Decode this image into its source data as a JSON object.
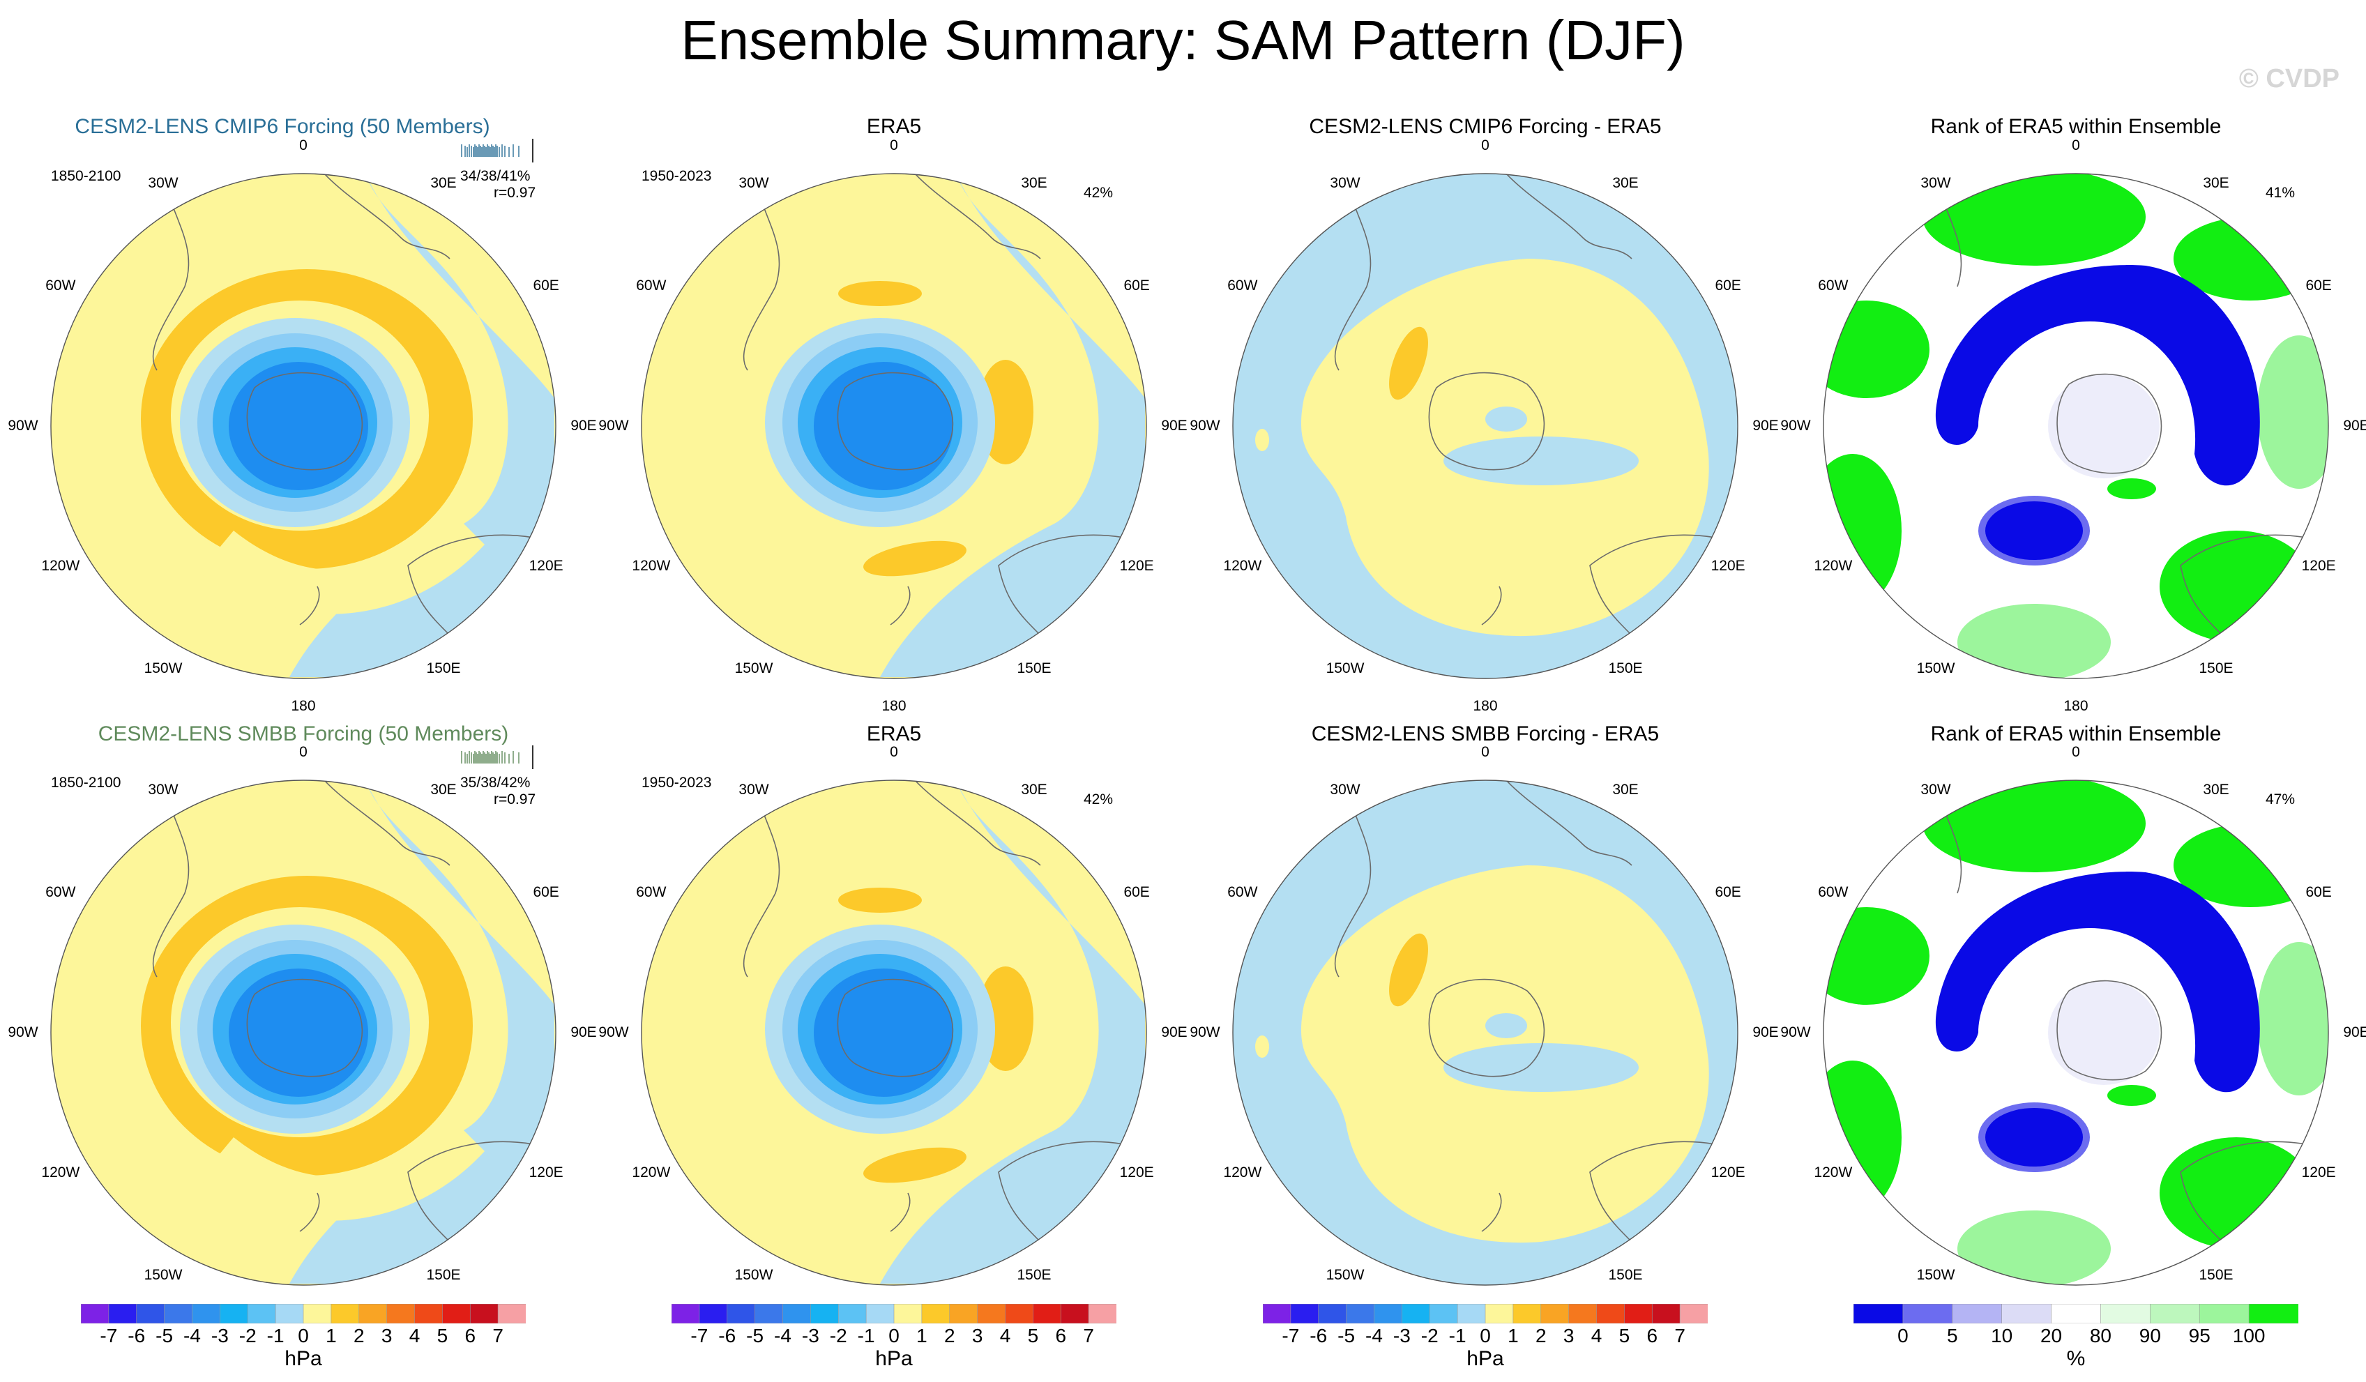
{
  "title": "Ensemble Summary: SAM Pattern (DJF)",
  "watermark": "© CVDP",
  "colors": {
    "bg_yellow": "#fdf69a",
    "pos1": "#fcc92a",
    "neg_light": "#b4dff2",
    "neg_mid": "#8ccdf5",
    "neg_deep": "#3ab0f5",
    "neg_core": "#1e8df0",
    "rank_blue": "#0a0ae6",
    "rank_lblue": "#6c6cf0",
    "rank_vlight": "#dcdcf6",
    "rank_green": "#12ee12",
    "rank_lgreen": "#9cf59c",
    "rank_vlgreen": "#e2fbe2"
  },
  "longitude_labels": [
    "0",
    "30E",
    "60E",
    "90E",
    "120E",
    "150E",
    "180",
    "150W",
    "120W",
    "90W",
    "60W",
    "30W"
  ],
  "rows": [
    {
      "panels": [
        {
          "title": "CESM2-LENS CMIP6 Forcing (50 Members)",
          "period": "1850-2100",
          "stats": "34/38/41%",
          "corr": "r=0.97",
          "pct": ""
        },
        {
          "title": "ERA5",
          "period": "1950-2023",
          "stats": "",
          "corr": "",
          "pct": "42%"
        },
        {
          "title": "CESM2-LENS CMIP6 Forcing - ERA5",
          "period": "",
          "stats": "",
          "corr": "",
          "pct": ""
        },
        {
          "title": "Rank of ERA5 within Ensemble",
          "period": "",
          "stats": "",
          "corr": "",
          "pct": "41%"
        }
      ]
    },
    {
      "panels": [
        {
          "title": "CESM2-LENS SMBB Forcing (50 Members)",
          "period": "1850-2100",
          "stats": "35/38/42%",
          "corr": "r=0.97",
          "pct": ""
        },
        {
          "title": "ERA5",
          "period": "1950-2023",
          "stats": "",
          "corr": "",
          "pct": "42%"
        },
        {
          "title": "CESM2-LENS SMBB Forcing - ERA5",
          "period": "",
          "stats": "",
          "corr": "",
          "pct": ""
        },
        {
          "title": "Rank of ERA5 within Ensemble",
          "period": "",
          "stats": "",
          "corr": "",
          "pct": "47%"
        }
      ]
    }
  ],
  "colorbars": [
    {
      "unit": "hPa",
      "tick_labels": [
        "-7",
        "-6",
        "-5",
        "-4",
        "-3",
        "-2",
        "-1",
        "0",
        "1",
        "2",
        "3",
        "4",
        "5",
        "6",
        "7"
      ],
      "colors": [
        "#7d22e6",
        "#2a1ef0",
        "#2f55e8",
        "#3b78ea",
        "#2f93ee",
        "#16b2f2",
        "#5cc2f4",
        "#a6d9f5",
        "#fdf69a",
        "#fcc92a",
        "#f9a424",
        "#f5781e",
        "#ef4a18",
        "#e11e16",
        "#c8101e",
        "#f6a0a4"
      ]
    },
    {
      "unit": "hPa",
      "tick_labels": [
        "-7",
        "-6",
        "-5",
        "-4",
        "-3",
        "-2",
        "-1",
        "0",
        "1",
        "2",
        "3",
        "4",
        "5",
        "6",
        "7"
      ],
      "colors": [
        "#7d22e6",
        "#2a1ef0",
        "#2f55e8",
        "#3b78ea",
        "#2f93ee",
        "#16b2f2",
        "#5cc2f4",
        "#a6d9f5",
        "#fdf69a",
        "#fcc92a",
        "#f9a424",
        "#f5781e",
        "#ef4a18",
        "#e11e16",
        "#c8101e",
        "#f6a0a4"
      ]
    },
    {
      "unit": "hPa",
      "tick_labels": [
        "-7",
        "-6",
        "-5",
        "-4",
        "-3",
        "-2",
        "-1",
        "0",
        "1",
        "2",
        "3",
        "4",
        "5",
        "6",
        "7"
      ],
      "colors": [
        "#7d22e6",
        "#2a1ef0",
        "#2f55e8",
        "#3b78ea",
        "#2f93ee",
        "#16b2f2",
        "#5cc2f4",
        "#a6d9f5",
        "#fdf69a",
        "#fcc92a",
        "#f9a424",
        "#f5781e",
        "#ef4a18",
        "#e11e16",
        "#c8101e",
        "#f6a0a4"
      ]
    },
    {
      "unit": "%",
      "tick_labels": [
        "0",
        "5",
        "10",
        "20",
        "80",
        "90",
        "95",
        "100"
      ],
      "colors": [
        "#0a0ae6",
        "#6c6cf0",
        "#b4b4f4",
        "#dcdcf6",
        "#ffffff",
        "#e2fbe2",
        "#bdf7bd",
        "#9cf59c",
        "#12ee12"
      ]
    }
  ]
}
